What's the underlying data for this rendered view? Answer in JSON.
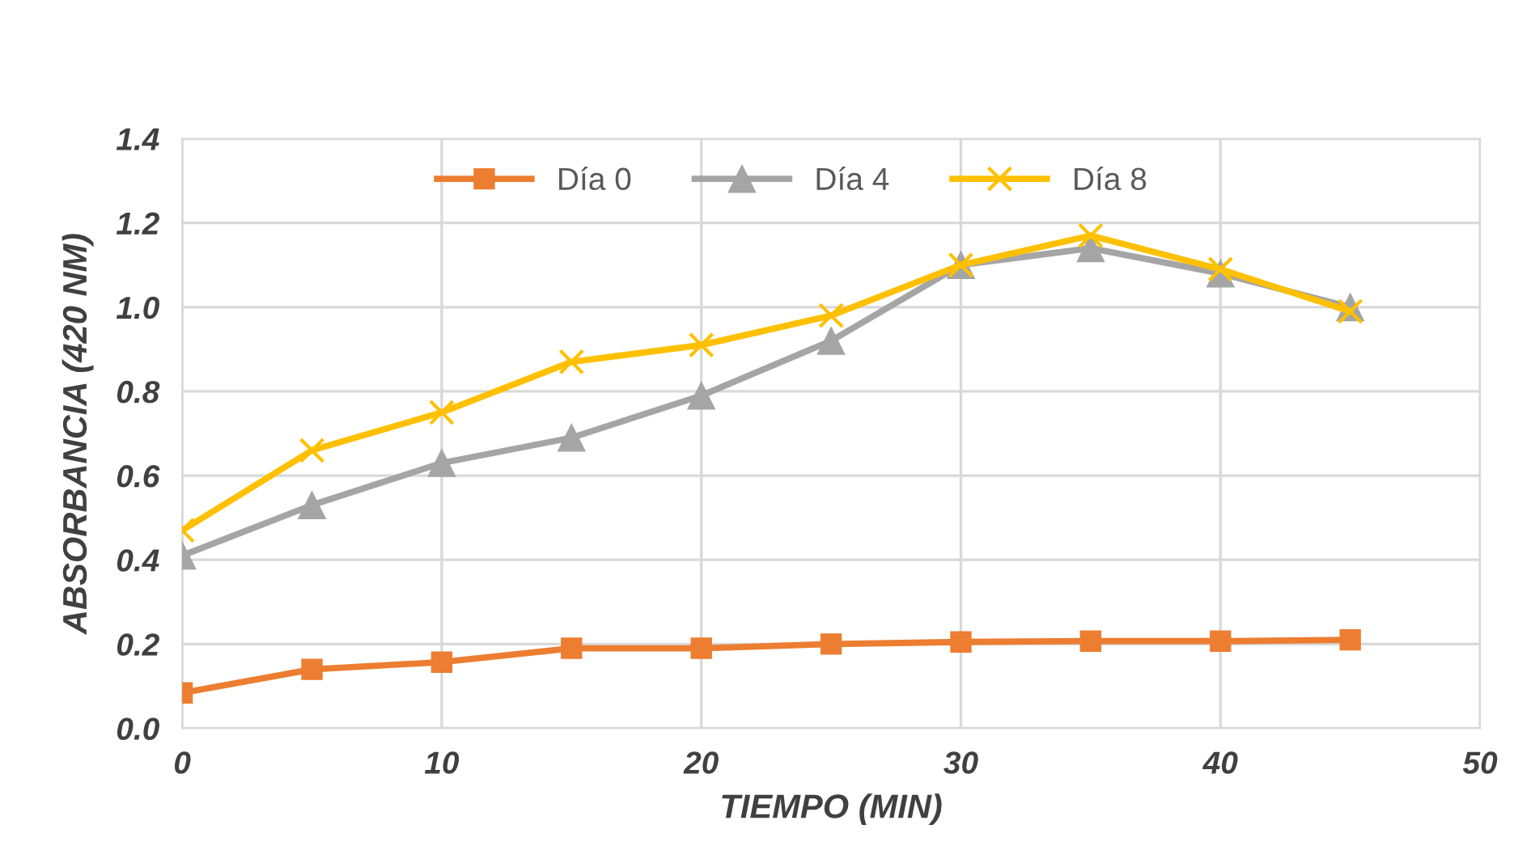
{
  "chart_data": {
    "type": "line",
    "xlabel": "TIEMPO (MIN)",
    "ylabel": "ABSORBANCIA (420 NM)",
    "x": [
      0,
      5,
      10,
      15,
      20,
      25,
      30,
      35,
      40,
      45
    ],
    "series": [
      {
        "name": "Día 0",
        "color": "#ed7d31",
        "marker": "square",
        "values": [
          0.084,
          0.14,
          0.157,
          0.19,
          0.19,
          0.2,
          0.205,
          0.207,
          0.207,
          0.21
        ]
      },
      {
        "name": "Día 4",
        "color": "#a5a5a5",
        "marker": "triangle",
        "values": [
          0.41,
          0.53,
          0.63,
          0.69,
          0.79,
          0.92,
          1.1,
          1.14,
          1.08,
          1.0
        ]
      },
      {
        "name": "Día 8",
        "color": "#ffc000",
        "marker": "cross",
        "values": [
          0.47,
          0.66,
          0.75,
          0.87,
          0.91,
          0.98,
          1.1,
          1.17,
          1.09,
          0.99
        ]
      }
    ],
    "xlim": [
      0,
      50
    ],
    "xticks": [
      0,
      10,
      20,
      30,
      40,
      50
    ],
    "ylim": [
      0,
      1.4
    ],
    "yticks": [
      {
        "value": 0,
        "label": "0.0"
      },
      {
        "value": 0.2,
        "label": "0.2"
      },
      {
        "value": 0.4,
        "label": "0.4"
      },
      {
        "value": 0.6,
        "label": "0.6"
      },
      {
        "value": 0.8,
        "label": "0.8"
      },
      {
        "value": 1.0,
        "label": "1.0"
      },
      {
        "value": 1.2,
        "label": "1.2"
      },
      {
        "value": 1.4,
        "label": "1.4"
      }
    ],
    "grid": true,
    "legend": "top",
    "line_style": "solid"
  }
}
